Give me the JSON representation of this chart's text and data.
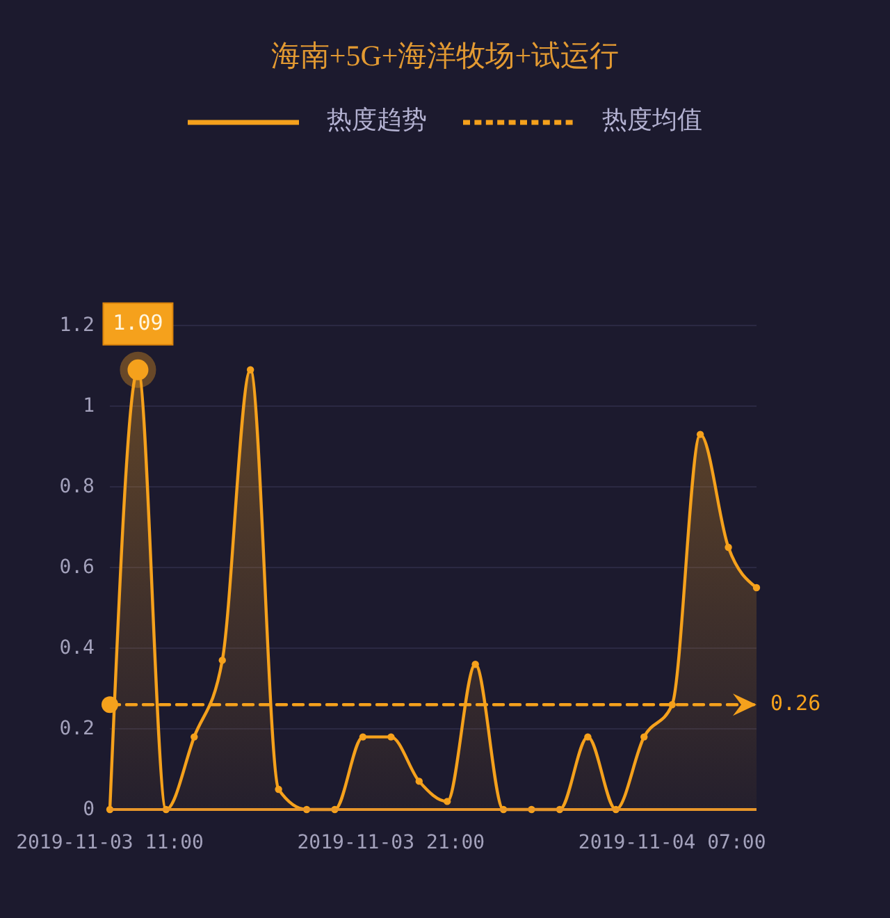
{
  "chart_data": {
    "type": "area",
    "title": "海南+5G+海洋牧场+试运行",
    "categories": [
      "2019-11-03 11:00",
      null,
      null,
      null,
      null,
      null,
      null,
      null,
      null,
      null,
      "2019-11-03 21:00",
      null,
      null,
      null,
      null,
      null,
      null,
      null,
      null,
      null,
      "2019-11-04 07:00",
      null,
      null,
      null
    ],
    "series": [
      {
        "name": "热度趋势",
        "color": "#f5a11c",
        "line_style": "solid",
        "values": [
          0,
          1.09,
          0,
          0.18,
          0.37,
          1.09,
          0.05,
          0,
          0,
          0.18,
          0.18,
          0.07,
          0.02,
          0.36,
          0,
          0,
          0,
          0.18,
          0,
          0.18,
          0.26,
          0.93,
          0.65,
          0.55
        ],
        "value_labels": [
          null,
          "1.09",
          null,
          null,
          null,
          null,
          null,
          null,
          null,
          null,
          null,
          null,
          null,
          null,
          null,
          null,
          null,
          null,
          null,
          null,
          null,
          null,
          null,
          null
        ]
      },
      {
        "name": "热度均值",
        "type": "line",
        "color": "#f5a11c",
        "line_style": "dashed",
        "marker": "none",
        "values": [
          0.26,
          0.26,
          0.26,
          0.26,
          0.26,
          0.26,
          0.26,
          0.26,
          0.26,
          0.26,
          0.26,
          0.26,
          0.26,
          0.26,
          0.26,
          0.26,
          0.26,
          0.26,
          0.26,
          0.26,
          0.26,
          0.26,
          0.26,
          0.26
        ],
        "value_labels": [
          null,
          null,
          null,
          null,
          null,
          null,
          null,
          null,
          null,
          null,
          null,
          null,
          null,
          null,
          null,
          null,
          null,
          null,
          null,
          null,
          null,
          null,
          null,
          "0.26"
        ]
      }
    ],
    "ylim": [
      0,
      1.2
    ],
    "yticks": [
      0,
      0.2,
      0.4,
      0.6,
      0.8,
      1,
      1.2
    ],
    "grid": "y",
    "legend": "top",
    "marker": "circle"
  }
}
